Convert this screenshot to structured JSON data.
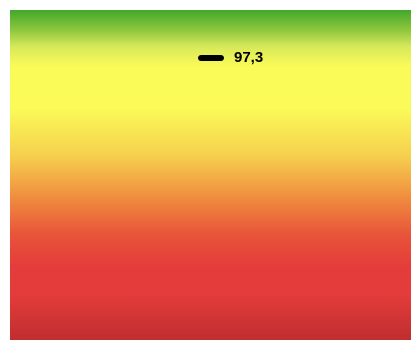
{
  "gauge": {
    "value_label": "97,3",
    "colors": {
      "top": "#43a82c",
      "yellow": "#fafa58",
      "orange": "#f08c3e",
      "red": "#e43c3a",
      "bottom": "#c02e30"
    }
  }
}
